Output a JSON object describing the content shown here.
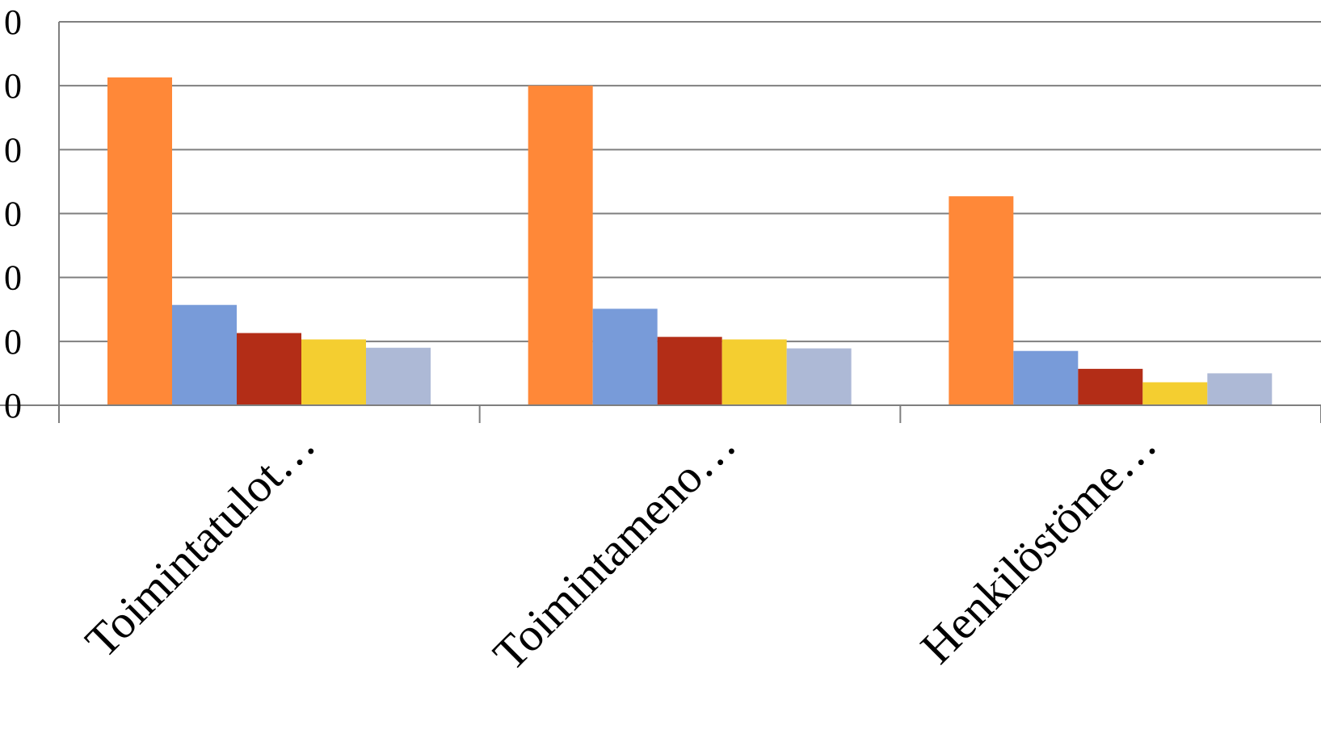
{
  "chart_data": {
    "type": "bar",
    "title": "",
    "xlabel": "",
    "ylabel": "",
    "categories": [
      "Toimintatulot…",
      "Toimintameno…",
      "Henkilöstöme…"
    ],
    "y_tick_labels": [
      "0",
      "0",
      "0",
      "0",
      "0",
      "0",
      "0"
    ],
    "ylim": [
      0,
      6
    ],
    "grid": true,
    "legend": "none",
    "series": [
      {
        "color": "#ff8838",
        "values": [
          5.13,
          5.0,
          3.27
        ]
      },
      {
        "color": "#789bd9",
        "values": [
          1.57,
          1.51,
          0.85
        ]
      },
      {
        "color": "#b32d17",
        "values": [
          1.13,
          1.07,
          0.57
        ]
      },
      {
        "color": "#f4ce30",
        "values": [
          1.03,
          1.03,
          0.36
        ]
      },
      {
        "color": "#adb9d6",
        "values": [
          0.9,
          0.89,
          0.5
        ]
      }
    ]
  }
}
